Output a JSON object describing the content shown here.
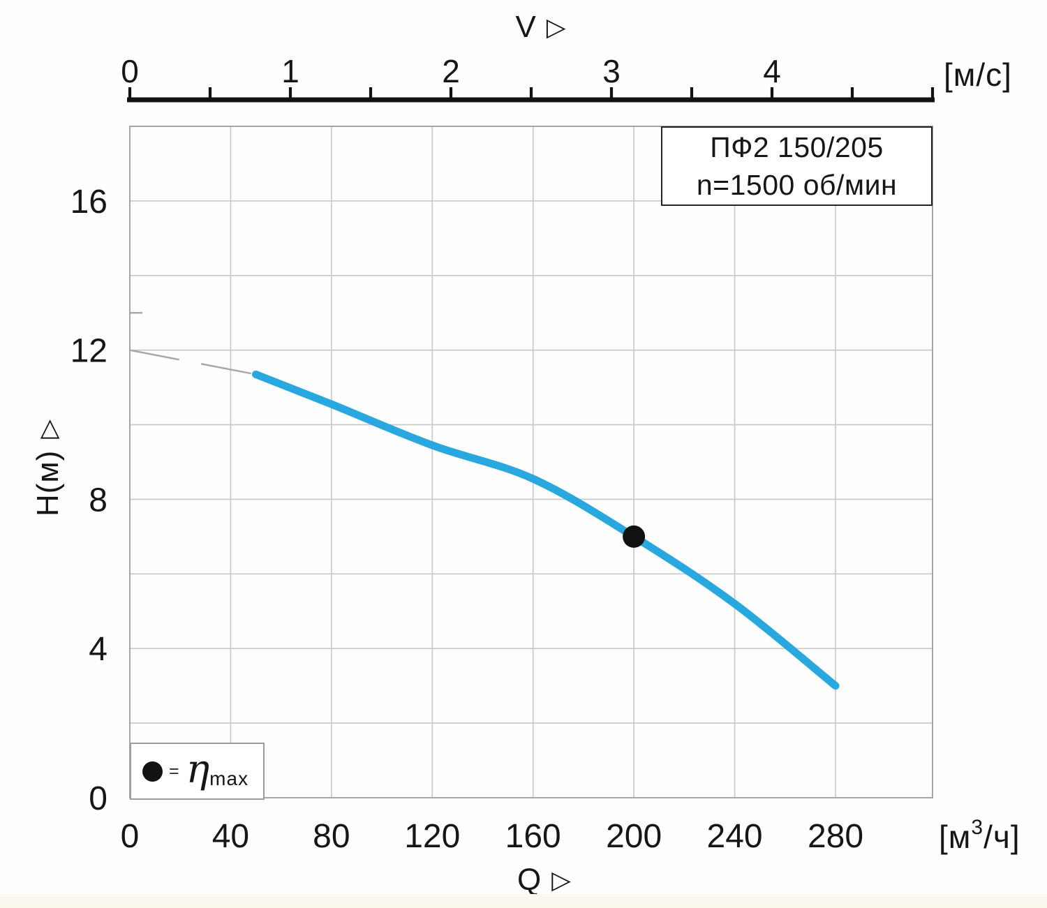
{
  "title_box": {
    "line1": "ПФ2 150/205",
    "line2": "n=1500 об/мин"
  },
  "axes": {
    "top": {
      "title": "V",
      "arrow": "▷",
      "unit": "[м/с]",
      "tick_labels": [
        "0",
        "1",
        "2",
        "3",
        "4"
      ],
      "tick_values": [
        0,
        1,
        2,
        3,
        4
      ],
      "minor_step": 0.5,
      "range": [
        0,
        5
      ]
    },
    "bottom": {
      "title": "Q",
      "arrow": "▷",
      "unit_prefix": "[м",
      "unit_sup": "3",
      "unit_suffix": "/ч]",
      "tick_labels": [
        "0",
        "40",
        "80",
        "120",
        "160",
        "200",
        "240",
        "280"
      ],
      "tick_values": [
        0,
        40,
        80,
        120,
        160,
        200,
        240,
        280
      ],
      "grid_step": 40,
      "range": [
        0,
        318.5
      ]
    },
    "left": {
      "title": "H(м)",
      "arrow": "▷",
      "tick_labels": [
        "0",
        "4",
        "8",
        "12",
        "16"
      ],
      "tick_values": [
        0,
        4,
        8,
        12,
        16
      ],
      "grid_step": 2,
      "range": [
        0,
        18
      ]
    }
  },
  "legend": {
    "equals": "=",
    "symbol": "η",
    "subscript": "max"
  },
  "colors": {
    "curve": "#29a8df",
    "grid": "#c7c7c7",
    "frame": "#9c9c9c",
    "ink": "#161616",
    "dash": "#a8a8a8"
  },
  "chart_data": {
    "type": "line",
    "title": "ПФ2 150/205",
    "subtitle": "n=1500 об/мин",
    "xlabel": "Q [м3/ч]",
    "x2label": "V [м/с]",
    "ylabel": "H(м)",
    "xlim": [
      0,
      318.5
    ],
    "x2lim": [
      0,
      5
    ],
    "ylim": [
      0,
      18
    ],
    "grid": true,
    "legend_position": "bottom-left",
    "series": [
      {
        "name": "H-Q characteristic",
        "style": "solid",
        "color": "#29a8df",
        "stroke_width": 11,
        "points": [
          {
            "q": 50,
            "h": 11.35
          },
          {
            "q": 80,
            "h": 10.55
          },
          {
            "q": 120,
            "h": 9.45
          },
          {
            "q": 160,
            "h": 8.55
          },
          {
            "q": 200,
            "h": 7.0
          },
          {
            "q": 240,
            "h": 5.2
          },
          {
            "q": 280,
            "h": 3.0
          }
        ]
      },
      {
        "name": "extrapolation to shutoff head",
        "style": "dashed",
        "color": "#a8a8a8",
        "stroke_width": 2.5,
        "points": [
          {
            "q": 0,
            "h": 12.0
          },
          {
            "q": 50,
            "h": 11.35
          }
        ]
      }
    ],
    "marker": {
      "name": "best efficiency point",
      "label": "η max",
      "q": 200,
      "h": 7.0,
      "radius": 16,
      "color": "#121212"
    },
    "left_edge_mark_h": 13
  }
}
